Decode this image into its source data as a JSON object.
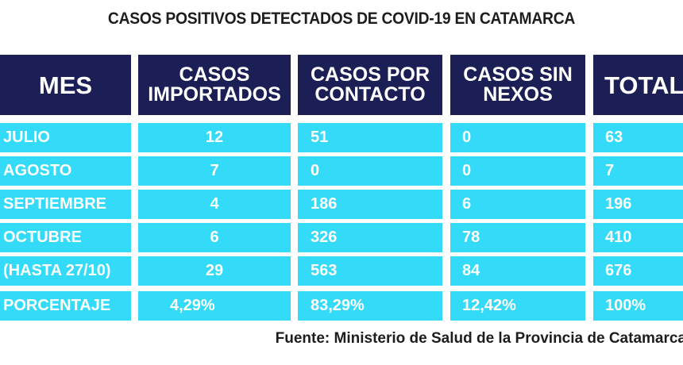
{
  "chart_data": {
    "type": "table",
    "title": "CASOS POSITIVOS DETECTADOS DE COVID-19 EN CATAMARCA",
    "columns": [
      {
        "line1": "MES",
        "line2": ""
      },
      {
        "line1": "CASOS",
        "line2": "IMPORTADOS"
      },
      {
        "line1": "CASOS POR",
        "line2": "CONTACTO"
      },
      {
        "line1": "CASOS SIN",
        "line2": "NEXOS"
      },
      {
        "line1": "TOTAL",
        "line2": ""
      }
    ],
    "rows": [
      [
        "JULIO",
        "12",
        "51",
        "0",
        "63"
      ],
      [
        "AGOSTO",
        "7",
        "0",
        "0",
        "7"
      ],
      [
        "SEPTIEMBRE",
        "4",
        "186",
        "6",
        "196"
      ],
      [
        "OCTUBRE",
        "6",
        "326",
        "78",
        "410"
      ],
      [
        "(HASTA 27/10)",
        "29",
        "563",
        "84",
        "676"
      ],
      [
        "PORCENTAJE",
        "4,29%",
        "83,29%",
        "12,42%",
        "100%"
      ]
    ],
    "source": "Fuente: Ministerio de Salud de la Provincia de Catamarca",
    "colors": {
      "header": "#1b1f55",
      "body": "#33dbf8",
      "text": "#ffffff"
    }
  }
}
